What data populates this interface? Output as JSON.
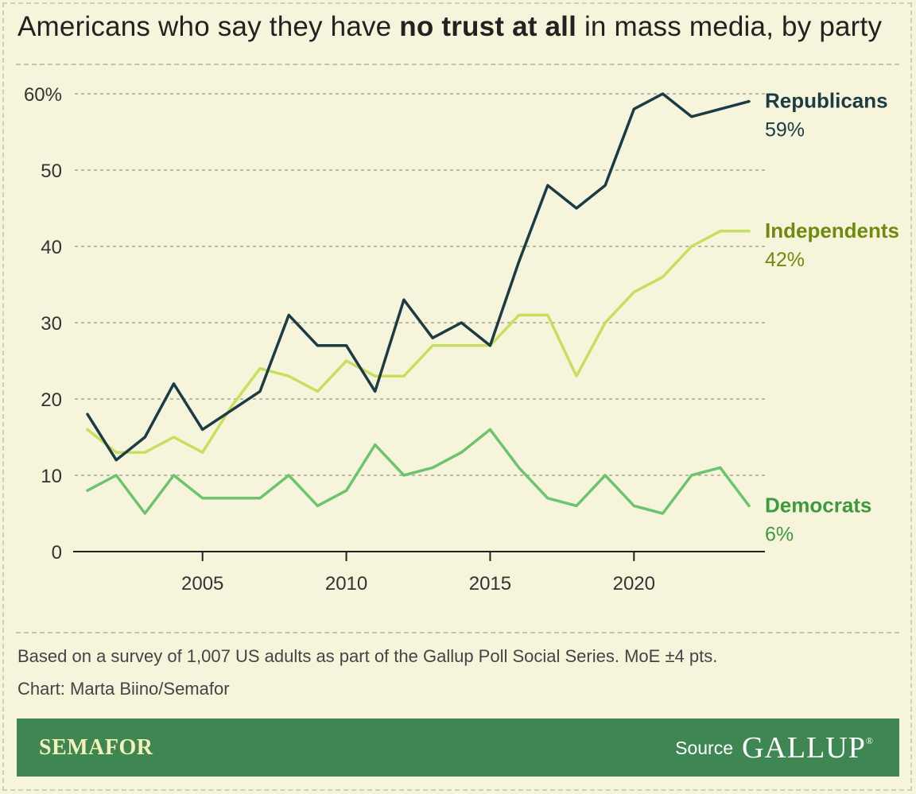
{
  "title": {
    "pre": "Americans who say they have ",
    "bold": "no trust at all",
    "post": " in mass media, by party"
  },
  "chart_data": {
    "type": "line",
    "title": "Americans who say they have no trust at all in mass media, by party",
    "x": [
      2001,
      2002,
      2003,
      2004,
      2005,
      2006,
      2007,
      2008,
      2009,
      2010,
      2011,
      2012,
      2013,
      2014,
      2015,
      2016,
      2017,
      2018,
      2019,
      2020,
      2021,
      2022,
      2023,
      2024
    ],
    "xticks": [
      2005,
      2010,
      2015,
      2020
    ],
    "yticks": [
      0,
      10,
      20,
      30,
      40,
      50,
      60
    ],
    "ytick_labels": [
      "0",
      "10",
      "20",
      "30",
      "40",
      "50",
      "60%"
    ],
    "ylim": [
      0,
      60
    ],
    "xlim": [
      2001,
      2024
    ],
    "grid": true,
    "series": [
      {
        "name": "Democrats",
        "end_label": "6%",
        "color": "#6cc46e",
        "label_color": "#3d9a3f",
        "values": [
          8,
          10,
          5,
          10,
          7,
          7,
          7,
          10,
          6,
          8,
          14,
          10,
          11,
          13,
          16,
          11,
          7,
          6,
          10,
          6,
          5,
          10,
          11,
          6
        ]
      },
      {
        "name": "Independents",
        "end_label": "42%",
        "color": "#c7df5e",
        "label_color": "#6f8a0f",
        "values": [
          16,
          13,
          13,
          15,
          13,
          19,
          24,
          23,
          21,
          25,
          23,
          23,
          27,
          27,
          27,
          31,
          31,
          23,
          30,
          34,
          36,
          40,
          42,
          42
        ]
      },
      {
        "name": "Republicans",
        "end_label": "59%",
        "color": "#1b3b45",
        "label_color": "#1b3b45",
        "values": [
          18,
          12,
          15,
          22,
          16,
          18.5,
          21,
          31,
          27,
          27,
          21,
          33,
          28,
          30,
          27,
          38,
          48,
          45,
          48,
          58,
          60,
          57,
          58,
          59
        ]
      }
    ]
  },
  "notes": {
    "survey": "Based on a survey of 1,007 US adults as part of the Gallup Poll Social Series. MoE ±4 pts.",
    "credit": "Chart: Marta Biino/Semafor"
  },
  "footer": {
    "brand": "SEMAFOR",
    "source_label": "Source",
    "source_name": "GALLUP",
    "source_mark": "®"
  }
}
